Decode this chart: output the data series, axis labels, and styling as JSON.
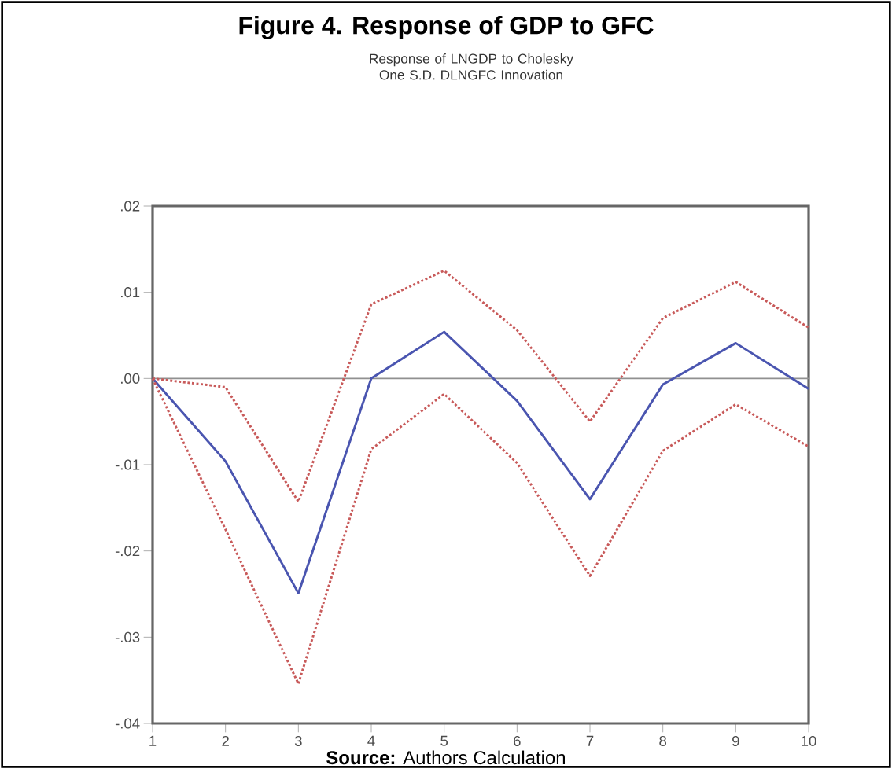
{
  "chart_data": {
    "type": "line",
    "title": "Figure 4. Response of GDP to GFC",
    "subtitle": "Response of LNGDP to Cholesky One S.D. DLNGFC Innovation",
    "x": [
      1,
      2,
      3,
      4,
      5,
      6,
      7,
      8,
      9,
      10
    ],
    "series": [
      {
        "color": "#4a55b0",
        "line_style": "solid",
        "values": [
          0,
          -0.0096,
          -0.0249,
          0,
          0.0054,
          -0.0026,
          -0.014,
          -0.0007,
          0.0041,
          -0.0012
        ]
      },
      {
        "color": "#c85a5a",
        "line_style": "dotted",
        "values": [
          0,
          -0.001,
          -0.0143,
          0.0086,
          0.0125,
          0.0056,
          -0.005,
          0.007,
          0.0112,
          0.0059
        ]
      },
      {
        "color": "#c85a5a",
        "line_style": "dotted",
        "values": [
          0,
          -0.0175,
          -0.0354,
          -0.0082,
          -0.0018,
          -0.0098,
          -0.0229,
          -0.0084,
          -0.003,
          -0.0079
        ]
      }
    ],
    "xlim": [
      1,
      10
    ],
    "xticks": [
      1,
      2,
      3,
      4,
      5,
      6,
      7,
      8,
      9,
      10
    ],
    "ylim": [
      -0.04,
      0.02
    ],
    "yticks": [
      {
        "value": -0.04,
        "label": "-.04"
      },
      {
        "value": -0.03,
        "label": "-.03"
      },
      {
        "value": -0.02,
        "label": "-.02"
      },
      {
        "value": -0.01,
        "label": "-.01"
      },
      {
        "value": 0,
        "label": ".00"
      },
      {
        "value": 0.01,
        "label": ".01"
      },
      {
        "value": 0.02,
        "label": ".02"
      }
    ],
    "ref_lines": [
      {
        "axis": "y",
        "value": 0,
        "color": "#909090"
      }
    ],
    "grid": false,
    "annotations": [
      "**Source:** Authors Calculation"
    ]
  }
}
